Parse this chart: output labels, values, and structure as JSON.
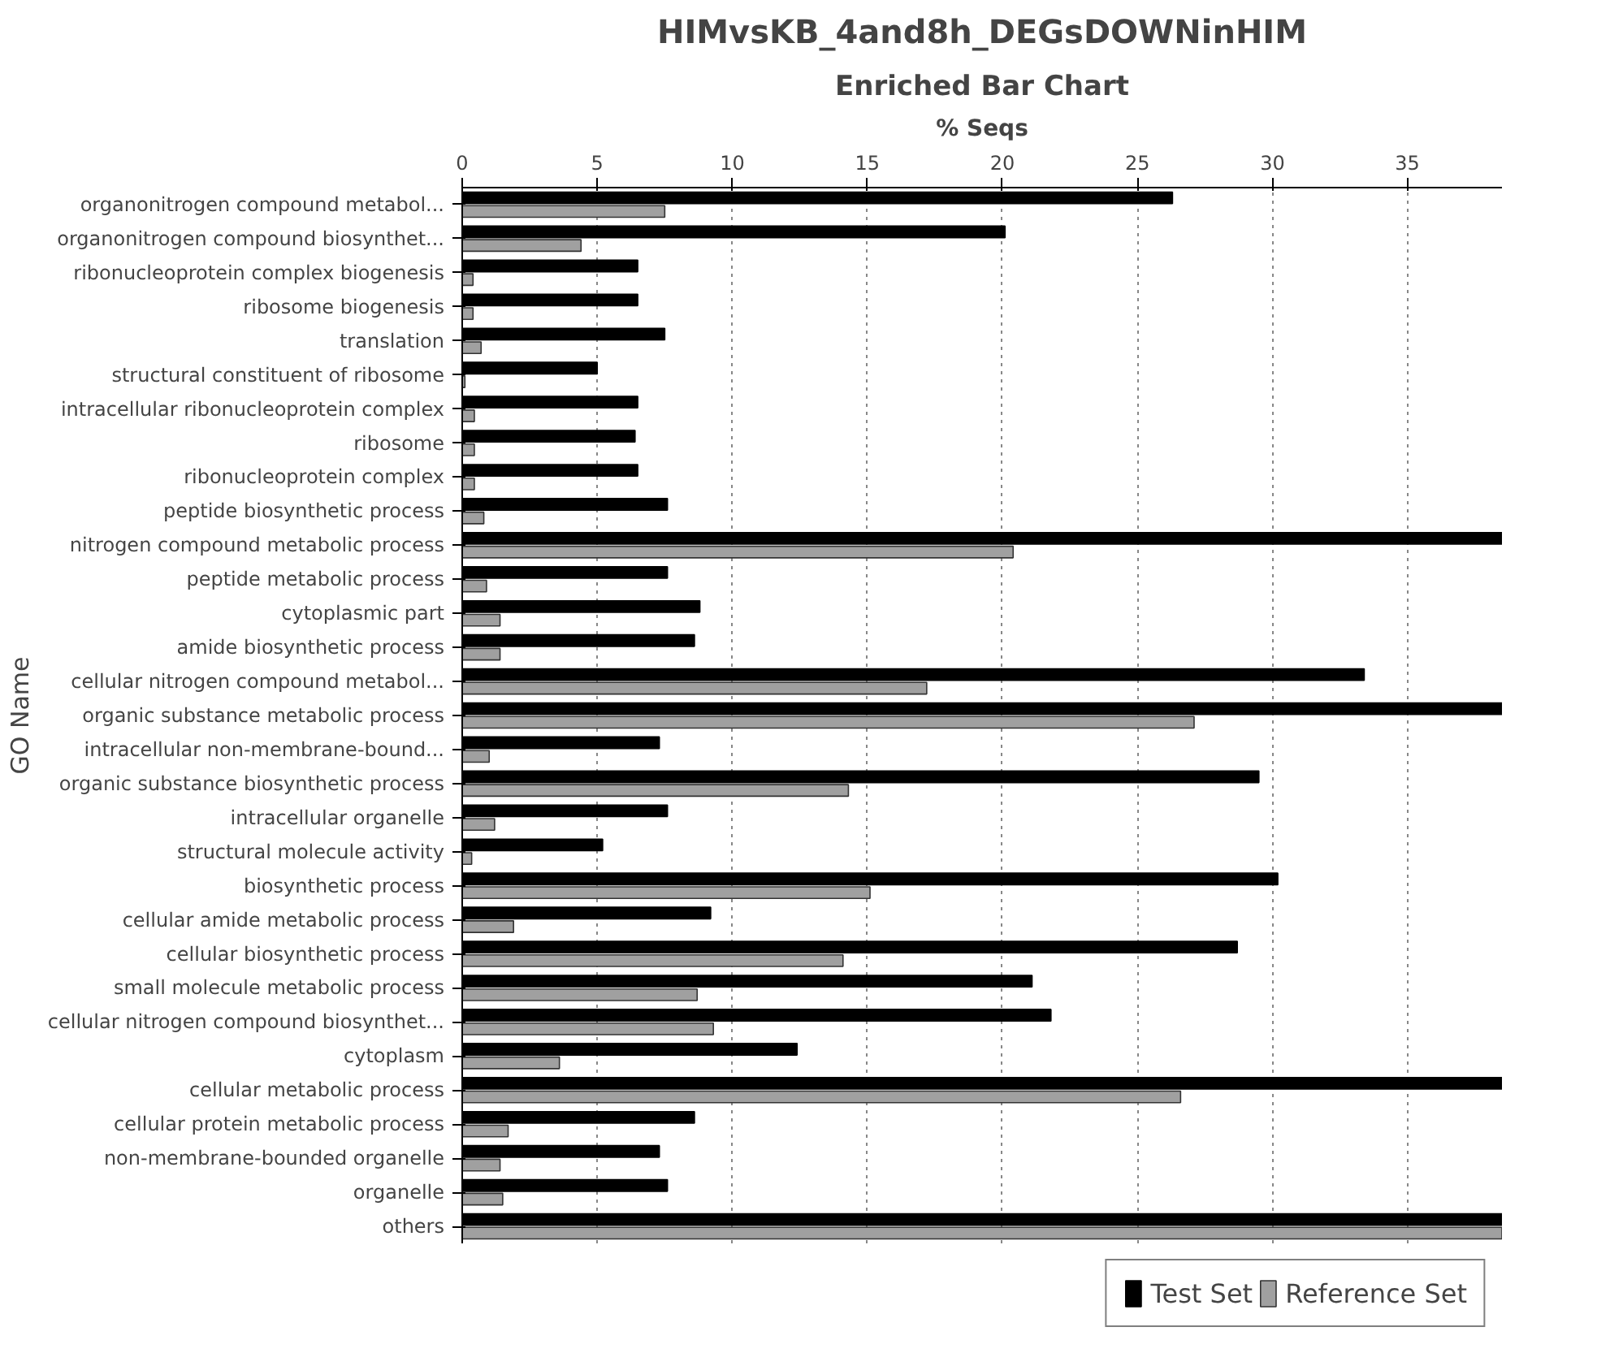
{
  "chart_data": {
    "type": "bar",
    "orientation": "horizontal",
    "title": "HIMvsKB_4and8h_DEGsDOWNinHIM",
    "subtitle": "Enriched Bar Chart",
    "xlabel": "% Seqs",
    "ylabel": "GO Name",
    "categories": [
      "organonitrogen compound metabol...",
      "organonitrogen compound biosynthet...",
      "ribonucleoprotein complex biogenesis",
      "ribosome biogenesis",
      "translation",
      "structural constituent of ribosome",
      "intracellular ribonucleoprotein complex",
      "ribosome",
      "ribonucleoprotein complex",
      "peptide biosynthetic process",
      "nitrogen compound metabolic process",
      "peptide metabolic process",
      "cytoplasmic part",
      "amide biosynthetic process",
      "cellular nitrogen compound metabol...",
      "organic substance metabolic process",
      "intracellular non-membrane-bound...",
      "organic substance biosynthetic process",
      "intracellular organelle",
      "structural molecule activity",
      "biosynthetic process",
      "cellular amide metabolic process",
      "cellular biosynthetic process",
      "small molecule metabolic process",
      "cellular nitrogen compound biosynthet...",
      "cytoplasm",
      "cellular metabolic process",
      "cellular protein metabolic process",
      "non-membrane-bounded organelle",
      "organelle",
      "others"
    ],
    "series": [
      {
        "name": "Test Set",
        "color": "#000000",
        "values": [
          26.3,
          20.1,
          6.5,
          6.5,
          7.5,
          5.0,
          6.5,
          6.4,
          6.5,
          7.6,
          38.5,
          7.6,
          8.8,
          8.6,
          33.4,
          38.5,
          7.3,
          29.5,
          7.6,
          5.2,
          30.2,
          9.2,
          28.7,
          21.1,
          21.8,
          12.4,
          38.5,
          8.6,
          7.3,
          7.6,
          38.5
        ]
      },
      {
        "name": "Reference Set",
        "color": "#a0a0a0",
        "values": [
          7.5,
          4.4,
          0.4,
          0.4,
          0.7,
          0.1,
          0.45,
          0.45,
          0.45,
          0.8,
          20.4,
          0.9,
          1.4,
          1.4,
          17.2,
          27.1,
          1.0,
          14.3,
          1.2,
          0.35,
          15.1,
          1.9,
          14.1,
          8.7,
          9.3,
          3.6,
          26.6,
          1.7,
          1.4,
          1.5,
          38.5
        ]
      }
    ],
    "xlim": [
      0,
      38.5
    ],
    "xticks": [
      0,
      5,
      10,
      15,
      20,
      25,
      30,
      35
    ],
    "grid": "x",
    "legend": "bottom"
  }
}
